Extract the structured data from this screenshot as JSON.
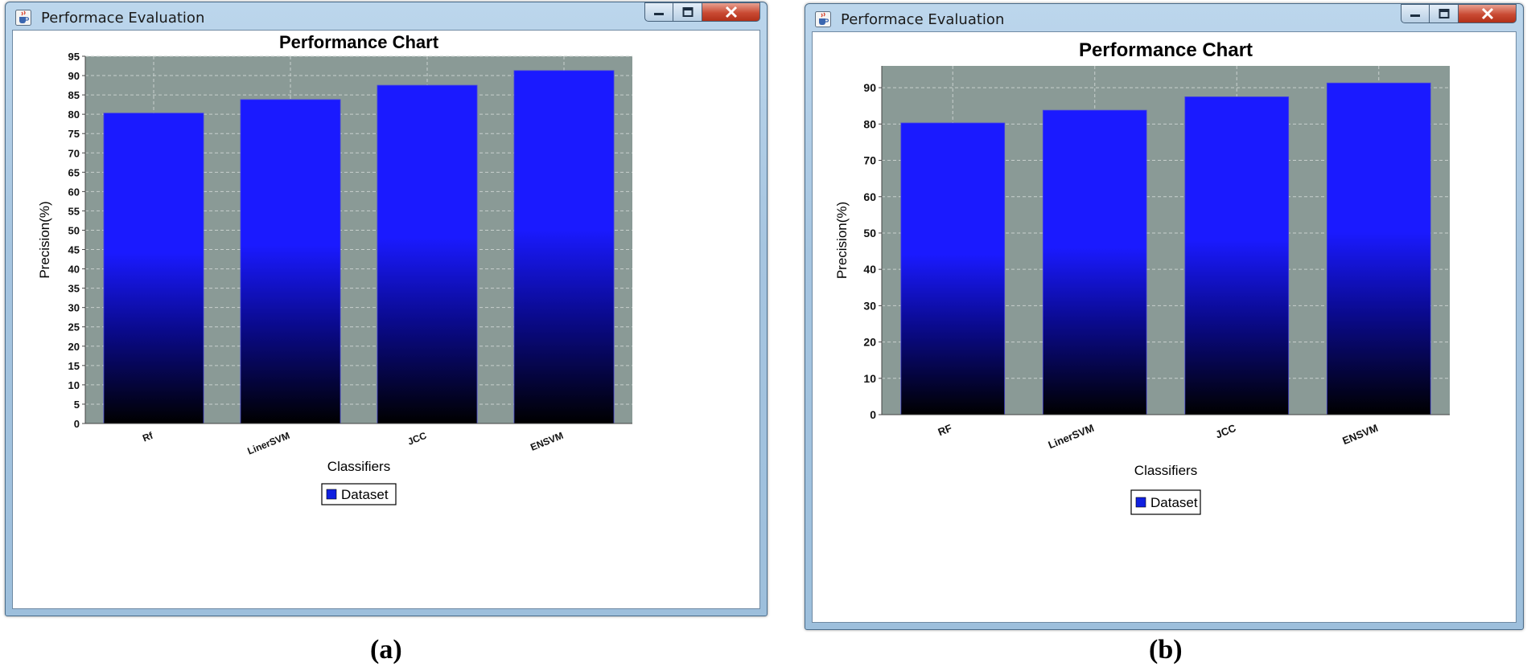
{
  "colors": {
    "plot_bg": "#8a9a96",
    "grid": "#c8d0cd",
    "bar_top": "#1a1aff",
    "bar_mid": "#0a0a8c",
    "bar_bottom": "#000000",
    "legend_swatch": "#1020e0"
  },
  "panels": [
    {
      "window_title": "Performace Evaluation",
      "window_icon": "java-cup-icon",
      "controls": {
        "minimize_icon": "minimize-icon",
        "maximize_icon": "maximize-icon",
        "close_icon": "close-icon"
      },
      "caption": "(a)"
    },
    {
      "window_title": "Performace Evaluation",
      "window_icon": "java-cup-icon",
      "controls": {
        "minimize_icon": "minimize-icon",
        "maximize_icon": "maximize-icon",
        "close_icon": "close-icon"
      },
      "caption": "(b)"
    }
  ],
  "chart_data": [
    {
      "type": "bar",
      "title": "Performance Chart",
      "xlabel": "Classifiers",
      "ylabel": "Precision(%)",
      "categories": [
        "Rf",
        "LinerSVM",
        "JCC",
        "ENSVM"
      ],
      "series": [
        {
          "name": "Dataset",
          "values": [
            80.3,
            83.8,
            87.5,
            91.3
          ]
        }
      ],
      "ylim": [
        0,
        95
      ],
      "yticks": [
        0,
        5,
        10,
        15,
        20,
        25,
        30,
        35,
        40,
        45,
        50,
        55,
        60,
        65,
        70,
        75,
        80,
        85,
        90,
        95
      ],
      "grid": true,
      "legend": "bottom-center"
    },
    {
      "type": "bar",
      "title": "Performance Chart",
      "xlabel": "Classifiers",
      "ylabel": "Precision(%)",
      "categories": [
        "RF",
        "LinerSVM",
        "JCC",
        "ENSVM"
      ],
      "series": [
        {
          "name": "Dataset",
          "values": [
            80.3,
            83.8,
            87.5,
            91.3
          ]
        }
      ],
      "ylim": [
        0,
        96
      ],
      "yticks": [
        0,
        10,
        20,
        30,
        40,
        50,
        60,
        70,
        80,
        90
      ],
      "grid": true,
      "legend": "bottom-center"
    }
  ]
}
